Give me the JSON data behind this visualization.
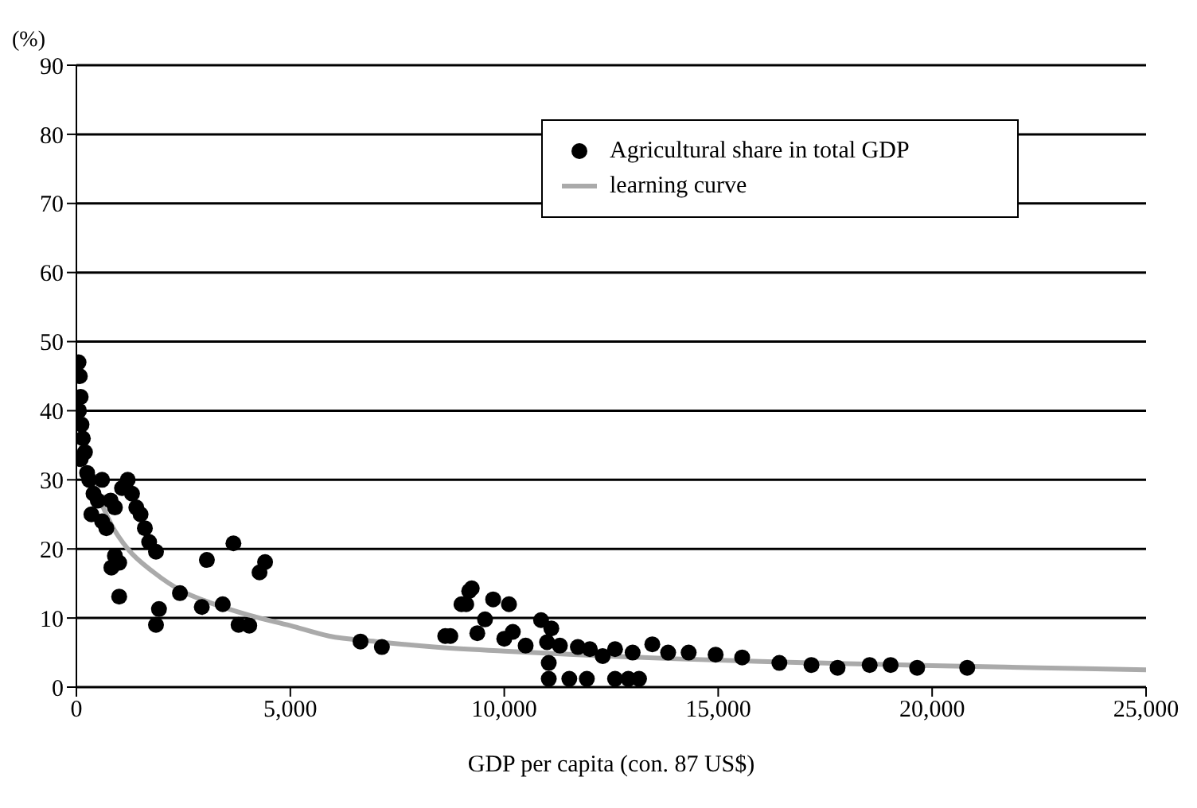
{
  "chart_data": {
    "type": "scatter",
    "xlabel": "GDP per capita (con. 87 US$)",
    "ylabel": "(%)",
    "xlim": [
      0,
      25000
    ],
    "xticks": [
      0,
      {
        "value": 5000,
        "label": "5,000"
      },
      {
        "value": 10000,
        "label": "10,000"
      },
      {
        "value": 15000,
        "label": "15,000"
      },
      {
        "value": 20000,
        "label": "20,000"
      },
      {
        "value": 25000,
        "label": "25,000"
      }
    ],
    "ylim": [
      0,
      90
    ],
    "yticks": [
      0,
      10,
      20,
      30,
      40,
      50,
      60,
      70,
      80,
      90
    ],
    "grid": "y",
    "legend": "top right",
    "series": [
      {
        "name": "Agricultural share in total GDP",
        "marker": "circle",
        "color": "#000000",
        "x": [
          50,
          80,
          100,
          60,
          120,
          150,
          200,
          100,
          250,
          300,
          400,
          500,
          350,
          600,
          700,
          818,
          900,
          1000,
          600,
          800,
          900,
          1066,
          1200,
          1300,
          1400,
          1500,
          1600,
          1700,
          1860,
          1000,
          1860,
          1930,
          2420,
          3050,
          3670,
          4280,
          4410,
          2930,
          3420,
          3790,
          4040,
          6640,
          7140,
          8620,
          9110,
          9240,
          9180,
          9000,
          9740,
          10110,
          9550,
          10860,
          8740,
          9370,
          11100,
          11040,
          11040,
          11520,
          11930,
          12590,
          12900,
          13150,
          11720,
          12590,
          13460,
          13830,
          14310,
          14940,
          15560,
          16430,
          17180,
          17790,
          18540,
          19030,
          19650,
          20820,
          10000,
          10500,
          10200,
          11000,
          11300,
          12000,
          13000,
          12300
        ],
        "values": [
          47,
          45,
          42,
          40,
          38,
          36,
          34,
          33,
          31,
          30,
          28,
          27,
          25,
          24,
          23,
          17.3,
          19,
          18,
          30,
          27,
          26,
          28.8,
          30,
          28,
          26,
          25,
          23,
          21,
          19.6,
          13.1,
          9,
          11.3,
          13.6,
          18.4,
          20.8,
          16.6,
          18.1,
          11.6,
          12,
          9,
          8.9,
          6.6,
          5.8,
          7.4,
          12,
          14.3,
          13.9,
          12,
          12.7,
          12,
          9.8,
          9.7,
          7.4,
          7.8,
          8.5,
          3.5,
          1.2,
          1.2,
          1.2,
          1.2,
          1.2,
          1.2,
          5.8,
          5.5,
          6.2,
          5,
          5,
          4.7,
          4.3,
          3.5,
          3.2,
          2.8,
          3.2,
          3.2,
          2.8,
          2.8,
          7,
          6,
          8,
          6.5,
          6,
          5.5,
          5,
          4.5
        ]
      },
      {
        "name": "learning curve",
        "type": "line",
        "marker": "none",
        "color": "#aaaaaa",
        "x": [
          300,
          818,
          1200,
          1810,
          2500,
          3000,
          4040,
          5000,
          5900,
          7000,
          8360,
          10000,
          12000,
          14000,
          16000,
          18000,
          20000,
          22500,
          25000
        ],
        "values": [
          31,
          23.5,
          20,
          16.6,
          13.8,
          12.5,
          10.4,
          8.9,
          7.4,
          6.6,
          5.8,
          5.2,
          4.6,
          4.1,
          3.7,
          3.4,
          3.1,
          2.8,
          2.5
        ]
      }
    ]
  }
}
